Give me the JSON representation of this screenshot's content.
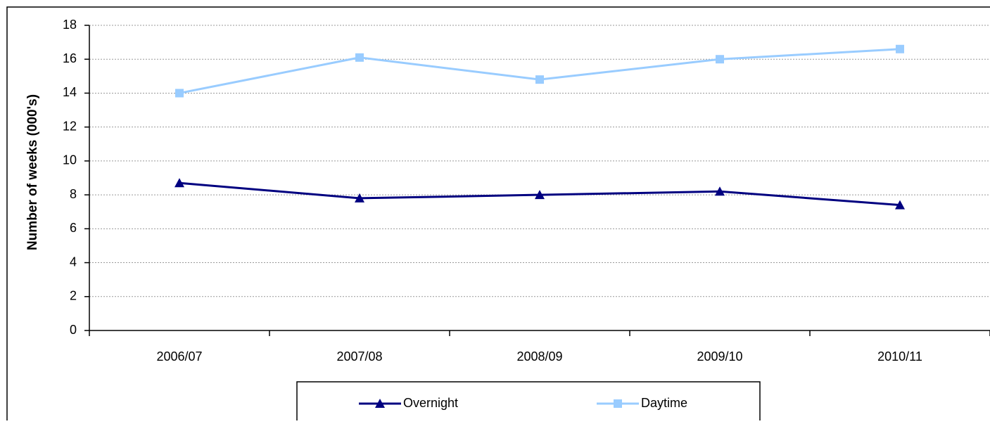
{
  "chart_data": {
    "type": "line",
    "y_label": "Number of weeks (000's)",
    "categories": [
      "2006/07",
      "2007/08",
      "2008/09",
      "2009/10",
      "2010/11"
    ],
    "series": [
      {
        "name": "Overnight",
        "color": "#000080",
        "marker": "triangle",
        "values": [
          8.7,
          7.8,
          8.0,
          8.2,
          7.4
        ]
      },
      {
        "name": "Daytime",
        "color": "#99ccff",
        "marker": "square",
        "values": [
          14.0,
          16.1,
          14.8,
          16.0,
          16.6
        ]
      }
    ],
    "ylim": [
      0,
      18
    ],
    "yticks": [
      0,
      2,
      4,
      6,
      8,
      10,
      12,
      14,
      16,
      18
    ],
    "grid": true,
    "legend": "bottom"
  }
}
